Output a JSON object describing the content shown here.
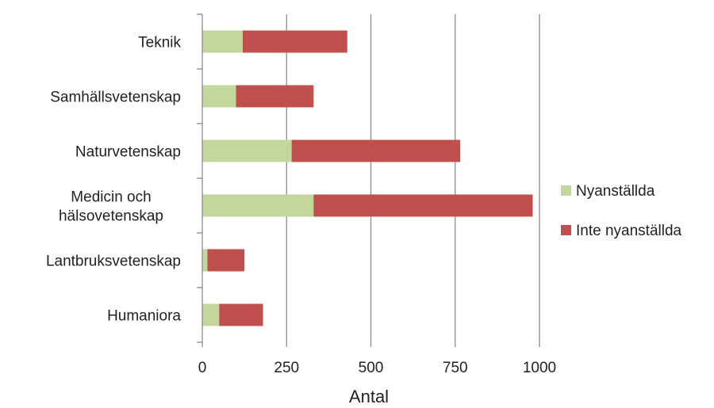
{
  "chart_data": {
    "type": "bar",
    "orientation": "horizontal",
    "stacked": true,
    "categories": [
      "Teknik",
      "Samhällsvetenskap",
      "Naturvetenskap",
      "Medicin och hälsovetenskap",
      "Lantbruksvetenskap",
      "Humaniora"
    ],
    "category_lines": [
      [
        "Teknik"
      ],
      [
        "Samhällsvetenskap"
      ],
      [
        "Naturvetenskap"
      ],
      [
        "Medicin och",
        "hälsovetenskap"
      ],
      [
        "Lantbruksvetenskap"
      ],
      [
        "Humaniora"
      ]
    ],
    "series": [
      {
        "name": "Nyanställda",
        "color": "#c3d69b",
        "values": [
          120,
          100,
          265,
          330,
          15,
          50
        ]
      },
      {
        "name": "Inte nyanställda",
        "color": "#c0504d",
        "values": [
          310,
          230,
          500,
          650,
          110,
          130
        ]
      }
    ],
    "xlabel": "Antal",
    "xlim": [
      0,
      1000
    ],
    "xticks": [
      0,
      250,
      500,
      750,
      1000
    ],
    "grid": "vertical",
    "legend": "right"
  }
}
